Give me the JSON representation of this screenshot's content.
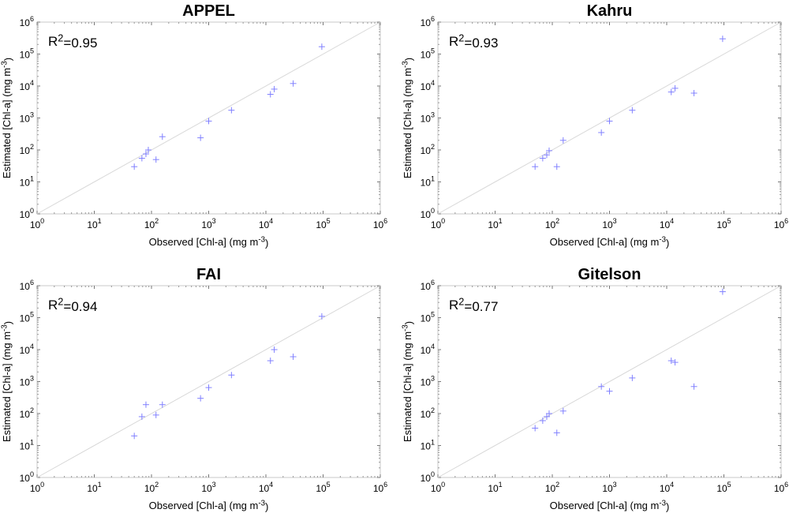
{
  "chart_data": [
    {
      "type": "scatter",
      "title": "APPEL",
      "xlabel": "Observed [Chl-a] (mg m-3)",
      "ylabel": "Estimated [Chl-a] (mg m-3)",
      "annotation": "R2=0.95",
      "xscale": "log",
      "yscale": "log",
      "xlim": [
        1,
        1000000
      ],
      "ylim": [
        1,
        1000000
      ],
      "one_to_one_line": true,
      "x": [
        50,
        68,
        80,
        88,
        120,
        155,
        720,
        1000,
        2500,
        12000,
        14000,
        30000,
        95000
      ],
      "y": [
        30,
        55,
        75,
        100,
        50,
        260,
        240,
        800,
        1750,
        5500,
        8000,
        12000,
        170000
      ]
    },
    {
      "type": "scatter",
      "title": "Kahru",
      "xlabel": "Observed [Chl-a] (mg m-3)",
      "ylabel": "Estimated [Chl-a] (mg m-3)",
      "annotation": "R2=0.93",
      "xscale": "log",
      "yscale": "log",
      "xlim": [
        1,
        1000000
      ],
      "ylim": [
        1,
        1000000
      ],
      "one_to_one_line": true,
      "x": [
        50,
        68,
        80,
        88,
        120,
        155,
        720,
        1000,
        2500,
        12000,
        14000,
        30000,
        95000
      ],
      "y": [
        30,
        55,
        70,
        95,
        30,
        200,
        350,
        800,
        1750,
        6500,
        8500,
        6000,
        300000
      ]
    },
    {
      "type": "scatter",
      "title": "FAI",
      "xlabel": "Observed [Chl-a] (mg m-3)",
      "ylabel": "Estimated [Chl-a] (mg m-3)",
      "annotation": "R2=0.94",
      "xscale": "log",
      "yscale": "log",
      "xlim": [
        1,
        1000000
      ],
      "ylim": [
        1,
        1000000
      ],
      "one_to_one_line": true,
      "x": [
        50,
        68,
        80,
        120,
        155,
        720,
        1000,
        2500,
        12000,
        14000,
        30000,
        95000
      ],
      "y": [
        20,
        80,
        190,
        90,
        190,
        300,
        650,
        1600,
        4500,
        10000,
        6000,
        110000
      ]
    },
    {
      "type": "scatter",
      "title": "Gitelson",
      "xlabel": "Observed [Chl-a] (mg m-3)",
      "ylabel": "Estimated [Chl-a] (mg m-3)",
      "annotation": "R2=0.77",
      "xscale": "log",
      "yscale": "log",
      "xlim": [
        1,
        1000000
      ],
      "ylim": [
        1,
        1000000
      ],
      "one_to_one_line": true,
      "x": [
        50,
        68,
        80,
        88,
        120,
        155,
        720,
        1000,
        2500,
        12000,
        14000,
        30000,
        95000
      ],
      "y": [
        35,
        60,
        80,
        100,
        25,
        120,
        700,
        500,
        1300,
        4500,
        4000,
        700,
        650000
      ]
    }
  ],
  "colors": {
    "marker": "#8080ff",
    "reference_line": "#d8d8d8",
    "axes": "#c8c8c8",
    "text": "#000000"
  }
}
